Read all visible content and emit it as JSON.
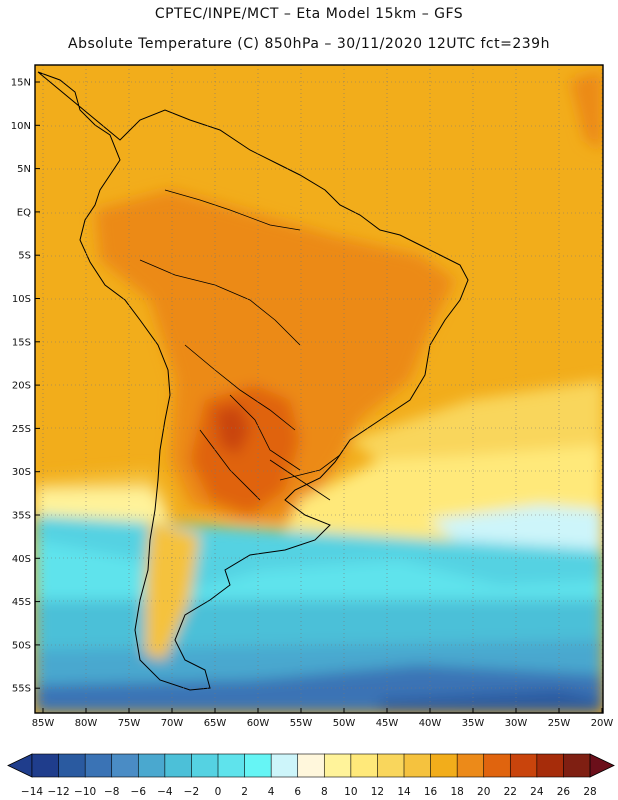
{
  "header": {
    "line1": "CPTEC/INPE/MCT –  Eta Model 15km – GFS",
    "line2": "Absolute Temperature (C) 850hPa – 30/11/2020 12UTC fct=239h"
  },
  "axes": {
    "lat_labels": [
      "15N",
      "10N",
      "5N",
      "EQ",
      "5S",
      "10S",
      "15S",
      "20S",
      "25S",
      "30S",
      "35S",
      "40S",
      "45S",
      "50S",
      "55S"
    ],
    "lon_labels": [
      "85W",
      "80W",
      "75W",
      "70W",
      "65W",
      "60W",
      "55W",
      "50W",
      "45W",
      "40W",
      "35W",
      "30W",
      "25W",
      "20W"
    ]
  },
  "colorbar": {
    "labels": [
      "-14",
      "-12",
      "-10",
      "-8",
      "-6",
      "-4",
      "-2",
      "0",
      "2",
      "4",
      "6",
      "8",
      "10",
      "12",
      "14",
      "16",
      "18",
      "20",
      "22",
      "24",
      "26",
      "28"
    ],
    "colors": [
      "#1f3d8c",
      "#2a5aa0",
      "#3a73b5",
      "#4a8cc5",
      "#4aa8cf",
      "#4cc0d8",
      "#55d2e2",
      "#5fe3ec",
      "#66f5f5",
      "#cdf5fa",
      "#fff7dc",
      "#fff39a",
      "#ffe97a",
      "#f9d65c",
      "#f5c23e",
      "#f2ad1b",
      "#ec8a19",
      "#e0640e",
      "#c9440c",
      "#a62c0a",
      "#7f1f12"
    ]
  },
  "colors": {
    "ocean_tropical": "#f2ad1b",
    "land_warm": "#ec8a19",
    "land_hot": "#e0640e",
    "mid_lat": "#ffe97a",
    "cool": "#5fe3ec",
    "cold": "#3a73b5"
  }
}
